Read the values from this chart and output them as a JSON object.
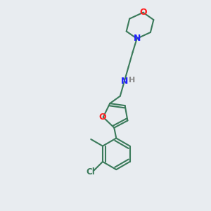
{
  "bg_color": "#e8ecf0",
  "bond_color": "#3a7a5a",
  "N_color": "#2020ff",
  "O_color": "#ff2020",
  "Cl_color": "#3a7a5a",
  "H_color": "#888888",
  "line_width": 1.5,
  "figsize": [
    3.0,
    3.0
  ],
  "dpi": 100,
  "xlim": [
    0,
    10
  ],
  "ylim": [
    0,
    10
  ]
}
